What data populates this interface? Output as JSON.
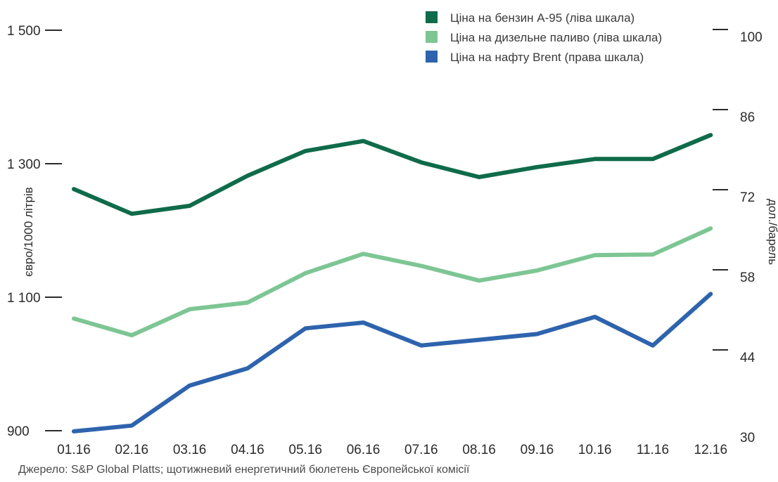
{
  "chart_data": {
    "type": "line",
    "categories": [
      "01.16",
      "02.16",
      "03.16",
      "04.16",
      "05.16",
      "06.16",
      "07.16",
      "08.16",
      "09.16",
      "10.16",
      "11.16",
      "12.16"
    ],
    "ylabel_left": "євро/1000 літрів",
    "ylabel_right": "дол./барель",
    "yticks_left": [
      "900",
      "1 100",
      "1 300",
      "1 500"
    ],
    "yticks_left_values": [
      900,
      1100,
      1300,
      1500
    ],
    "yticks_right": [
      "30",
      "44",
      "58",
      "72",
      "86",
      "100"
    ],
    "yticks_right_values": [
      30,
      44,
      58,
      72,
      86,
      100
    ],
    "ylim_left": [
      900,
      1500
    ],
    "ylim_right": [
      30,
      100
    ],
    "grid": false,
    "legend_position": "top-right",
    "series": [
      {
        "name": "Ціна на бензин А-95 (ліва шкала)",
        "axis": "left",
        "color": "#0f6b4a",
        "values": [
          1262,
          1225,
          1237,
          1282,
          1319,
          1334,
          1302,
          1280,
          1295,
          1307,
          1307,
          1343
        ]
      },
      {
        "name": "Ціна на дизельне паливо (ліва шкала)",
        "axis": "left",
        "color": "#7dc694",
        "values": [
          1068,
          1043,
          1082,
          1092,
          1136,
          1165,
          1147,
          1125,
          1140,
          1163,
          1164,
          1203
        ]
      },
      {
        "name": "Ціна на нафту Brent (права шкала)",
        "axis": "right",
        "color": "#2e63ad",
        "values": [
          31,
          32,
          39,
          42,
          49,
          50,
          46,
          47,
          48,
          51,
          46,
          55
        ]
      }
    ]
  },
  "source": "Джерело: S&P Global Platts; щотижневий енергетичний бюлетень Європейської комісії"
}
